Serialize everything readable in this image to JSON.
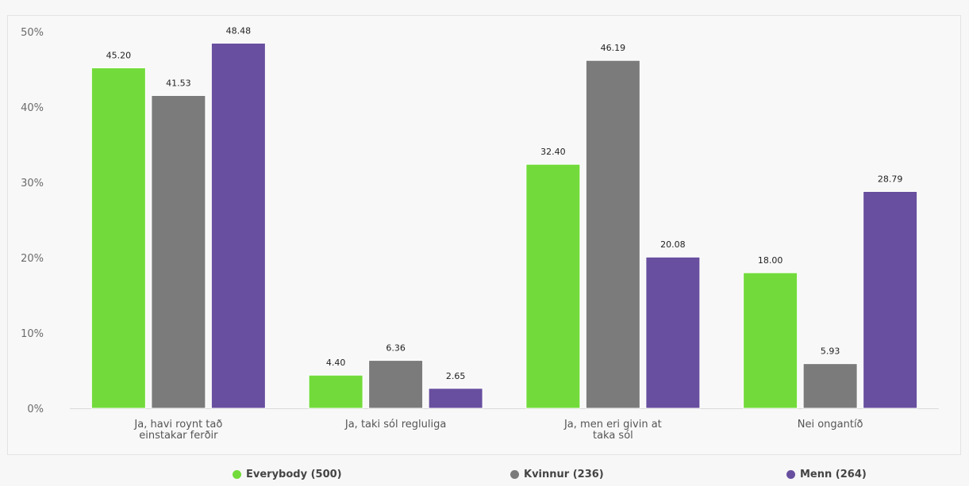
{
  "chart_data": {
    "type": "bar",
    "categories": [
      [
        "Ja, havi roynt tað",
        "einstakar ferðir"
      ],
      [
        "Ja, taki sól regluliga"
      ],
      [
        "Ja, men eri givin at",
        "taka sól"
      ],
      [
        "Nei ongantíð"
      ]
    ],
    "series": [
      {
        "name": "Everybody (500)",
        "color": "#72db3b",
        "values": [
          45.2,
          4.4,
          32.4,
          18.0
        ],
        "labels": [
          "45.20",
          "4.40",
          "32.40",
          "18.00"
        ]
      },
      {
        "name": "Kvinnur (236)",
        "color": "#7b7b7b",
        "values": [
          41.53,
          6.36,
          46.19,
          5.93
        ],
        "labels": [
          "41.53",
          "6.36",
          "46.19",
          "5.93"
        ]
      },
      {
        "name": "Menn (264)",
        "color": "#684f9f",
        "values": [
          48.48,
          2.65,
          20.08,
          28.79
        ],
        "labels": [
          "48.48",
          "2.65",
          "20.08",
          "28.79"
        ]
      }
    ],
    "yticks": [
      "0%",
      "10%",
      "20%",
      "30%",
      "40%",
      "50%"
    ],
    "ytick_values": [
      0,
      10,
      20,
      30,
      40,
      50
    ],
    "ylim": [
      0,
      50
    ],
    "grid": false,
    "legend_position": "bottom"
  }
}
